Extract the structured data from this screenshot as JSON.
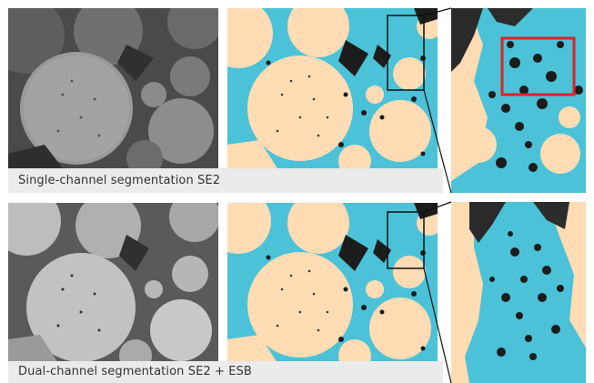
{
  "rows": [
    {
      "caption": "Single-channel segmentation SE2"
    },
    {
      "caption": "Dual-channel segmentation SE2 + ESB"
    }
  ],
  "colors": {
    "segmentation_cyan": "#4bc2d8",
    "background_peach": "#ffdcb4",
    "dark_pore": "#1c1c1c",
    "highlight_box": "#e02020",
    "caption_bg": "#ebebeb"
  }
}
